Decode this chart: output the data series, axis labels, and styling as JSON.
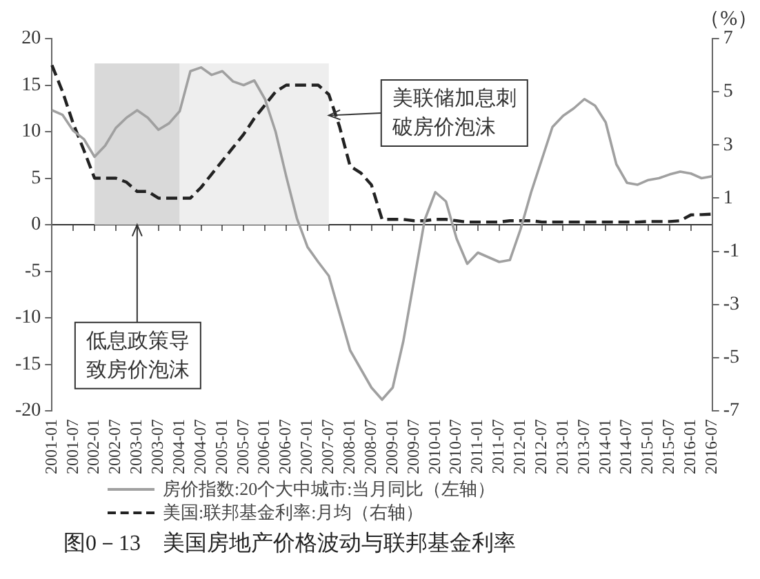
{
  "chart_data": {
    "type": "line",
    "title": "图0－13　美国房地产价格波动与联邦基金利率",
    "y2label": "（%）",
    "categories": [
      "2001-01",
      null,
      "2001-07",
      null,
      "2002-01",
      null,
      "2002-07",
      null,
      "2003-01",
      null,
      "2003-07",
      null,
      "2004-01",
      null,
      "2004-07",
      null,
      "2005-01",
      null,
      "2005-07",
      null,
      "2006-01",
      null,
      "2006-07",
      null,
      "2007-01",
      null,
      "2007-07",
      null,
      "2008-01",
      null,
      "2008-07",
      null,
      "2009-01",
      null,
      "2009-07",
      null,
      "2010-01",
      null,
      "2010-07",
      null,
      "2011-01",
      null,
      "2011-07",
      null,
      "2012-01",
      null,
      "2012-07",
      null,
      "2013-01",
      null,
      "2013-07",
      null,
      "2014-01",
      null,
      "2014-07",
      null,
      "2015-01",
      null,
      "2015-07",
      null,
      "2016-01",
      null,
      "2016-07"
    ],
    "series": [
      {
        "name": "房价指数:20个大中城市:当月同比（左轴）",
        "color": "#a0a0a0",
        "line_style": "solid",
        "values": [
          12.3,
          11.8,
          10.1,
          9.2,
          7.3,
          8.5,
          10.4,
          11.5,
          12.3,
          11.5,
          10.2,
          10.9,
          12.2,
          16.5,
          16.9,
          16.1,
          16.5,
          15.4,
          15.0,
          15.5,
          13.5,
          10.0,
          5.2,
          0.7,
          -2.4,
          -4.0,
          -5.5,
          -9.5,
          -13.5,
          -15.5,
          -17.5,
          -18.8,
          -17.5,
          -12.5,
          -6.0,
          0.5,
          3.5,
          2.5,
          -1.5,
          -4.2,
          -3.0,
          -3.5,
          -4.0,
          -3.8,
          -0.5,
          3.5,
          7.0,
          10.5,
          11.7,
          12.5,
          13.5,
          12.8,
          11.0,
          6.5,
          4.5,
          4.3,
          4.8,
          5.0,
          5.4,
          5.7,
          5.5,
          5.0,
          5.2
        ]
      },
      {
        "name": "美国:联邦基金利率:月均（右轴）",
        "color": "#222222",
        "axis": "y2",
        "line_style": "dashed",
        "values": [
          6.0,
          5.0,
          3.8,
          2.8,
          1.75,
          1.75,
          1.75,
          1.6,
          1.25,
          1.25,
          1.0,
          1.0,
          1.0,
          1.0,
          1.4,
          1.9,
          2.4,
          2.9,
          3.4,
          4.0,
          4.5,
          5.0,
          5.25,
          5.25,
          5.25,
          5.25,
          4.9,
          3.7,
          2.2,
          1.95,
          1.5,
          0.2,
          0.2,
          0.2,
          0.15,
          0.15,
          0.2,
          0.2,
          0.15,
          0.1,
          0.1,
          0.1,
          0.1,
          0.15,
          0.15,
          0.15,
          0.1,
          0.1,
          0.1,
          0.1,
          0.1,
          0.1,
          0.1,
          0.1,
          0.1,
          0.1,
          0.12,
          0.12,
          0.12,
          0.15,
          0.37,
          0.38,
          0.4
        ]
      }
    ],
    "ylim": [
      -20,
      20
    ],
    "yticks": [
      -20,
      -15,
      -10,
      -5,
      0,
      5,
      10,
      15,
      20
    ],
    "y2lim": [
      -7,
      7
    ],
    "y2ticks": [
      -7,
      -5,
      -3,
      -1,
      1,
      3,
      5,
      7
    ],
    "bands": [
      {
        "axis": "x",
        "from": "2002-01",
        "to": "2004-01",
        "color": "#d9d9d9"
      },
      {
        "axis": "x",
        "from": "2004-01",
        "to": "2007-07",
        "color": "#eeeeee"
      }
    ],
    "annotations": [
      {
        "text": "美联储加息刺破房价泡沫",
        "x": "2007-07",
        "y": 11.75
      },
      {
        "text": "低息政策导致房价泡沫",
        "x": "2003-01",
        "y": 0
      }
    ],
    "legend": "bottom",
    "marker": "none"
  }
}
